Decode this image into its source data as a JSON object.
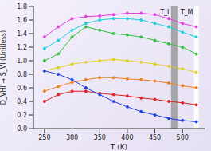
{
  "chart_data": {
    "type": "line",
    "x_label": "T (K)",
    "y_label": "D_VHI → S_VI (Unitless)",
    "x": [
      250,
      275,
      300,
      325,
      350,
      375,
      400,
      425,
      450,
      475,
      500,
      525
    ],
    "series": [
      {
        "color": "#e040e0",
        "marker": "circle",
        "values": [
          1.35,
          1.5,
          1.62,
          1.65,
          1.66,
          1.68,
          1.7,
          1.7,
          1.68,
          1.62,
          1.55,
          1.5
        ]
      },
      {
        "color": "#20d0e0",
        "marker": "circle",
        "values": [
          1.18,
          1.3,
          1.45,
          1.55,
          1.6,
          1.62,
          1.62,
          1.6,
          1.55,
          1.5,
          1.42,
          1.35
        ]
      },
      {
        "color": "#30c040",
        "marker": "circle",
        "values": [
          1.0,
          1.1,
          1.35,
          1.5,
          1.45,
          1.4,
          1.38,
          1.35,
          1.3,
          1.25,
          1.2,
          1.1
        ]
      },
      {
        "color": "#e0d020",
        "marker": "circle",
        "values": [
          0.85,
          0.9,
          0.95,
          0.98,
          1.0,
          1.02,
          1.0,
          0.98,
          0.95,
          0.92,
          0.88,
          0.83
        ]
      },
      {
        "color": "#f08020",
        "marker": "circle",
        "values": [
          0.55,
          0.62,
          0.68,
          0.72,
          0.75,
          0.75,
          0.73,
          0.72,
          0.7,
          0.67,
          0.63,
          0.6
        ]
      },
      {
        "color": "#e02020",
        "marker": "circle",
        "values": [
          0.4,
          0.5,
          0.55,
          0.55,
          0.52,
          0.5,
          0.48,
          0.45,
          0.43,
          0.4,
          0.38,
          0.35
        ]
      },
      {
        "color": "#2040e0",
        "marker": "circle",
        "values": [
          0.85,
          0.8,
          0.72,
          0.6,
          0.5,
          0.4,
          0.32,
          0.25,
          0.2,
          0.15,
          0.12,
          0.1
        ]
      }
    ],
    "xlim": [
      230,
      540
    ],
    "xticks": [
      250,
      300,
      350,
      400,
      450,
      500
    ],
    "ylim": [
      0,
      1.8
    ],
    "yticks": [
      0,
      0.2,
      0.4,
      0.6,
      0.8,
      1.0,
      1.2,
      1.4,
      1.6,
      1.8
    ],
    "annotations": [
      {
        "text": "T_I",
        "x": 485
      },
      {
        "text": "T_M",
        "x": 525
      }
    ]
  }
}
